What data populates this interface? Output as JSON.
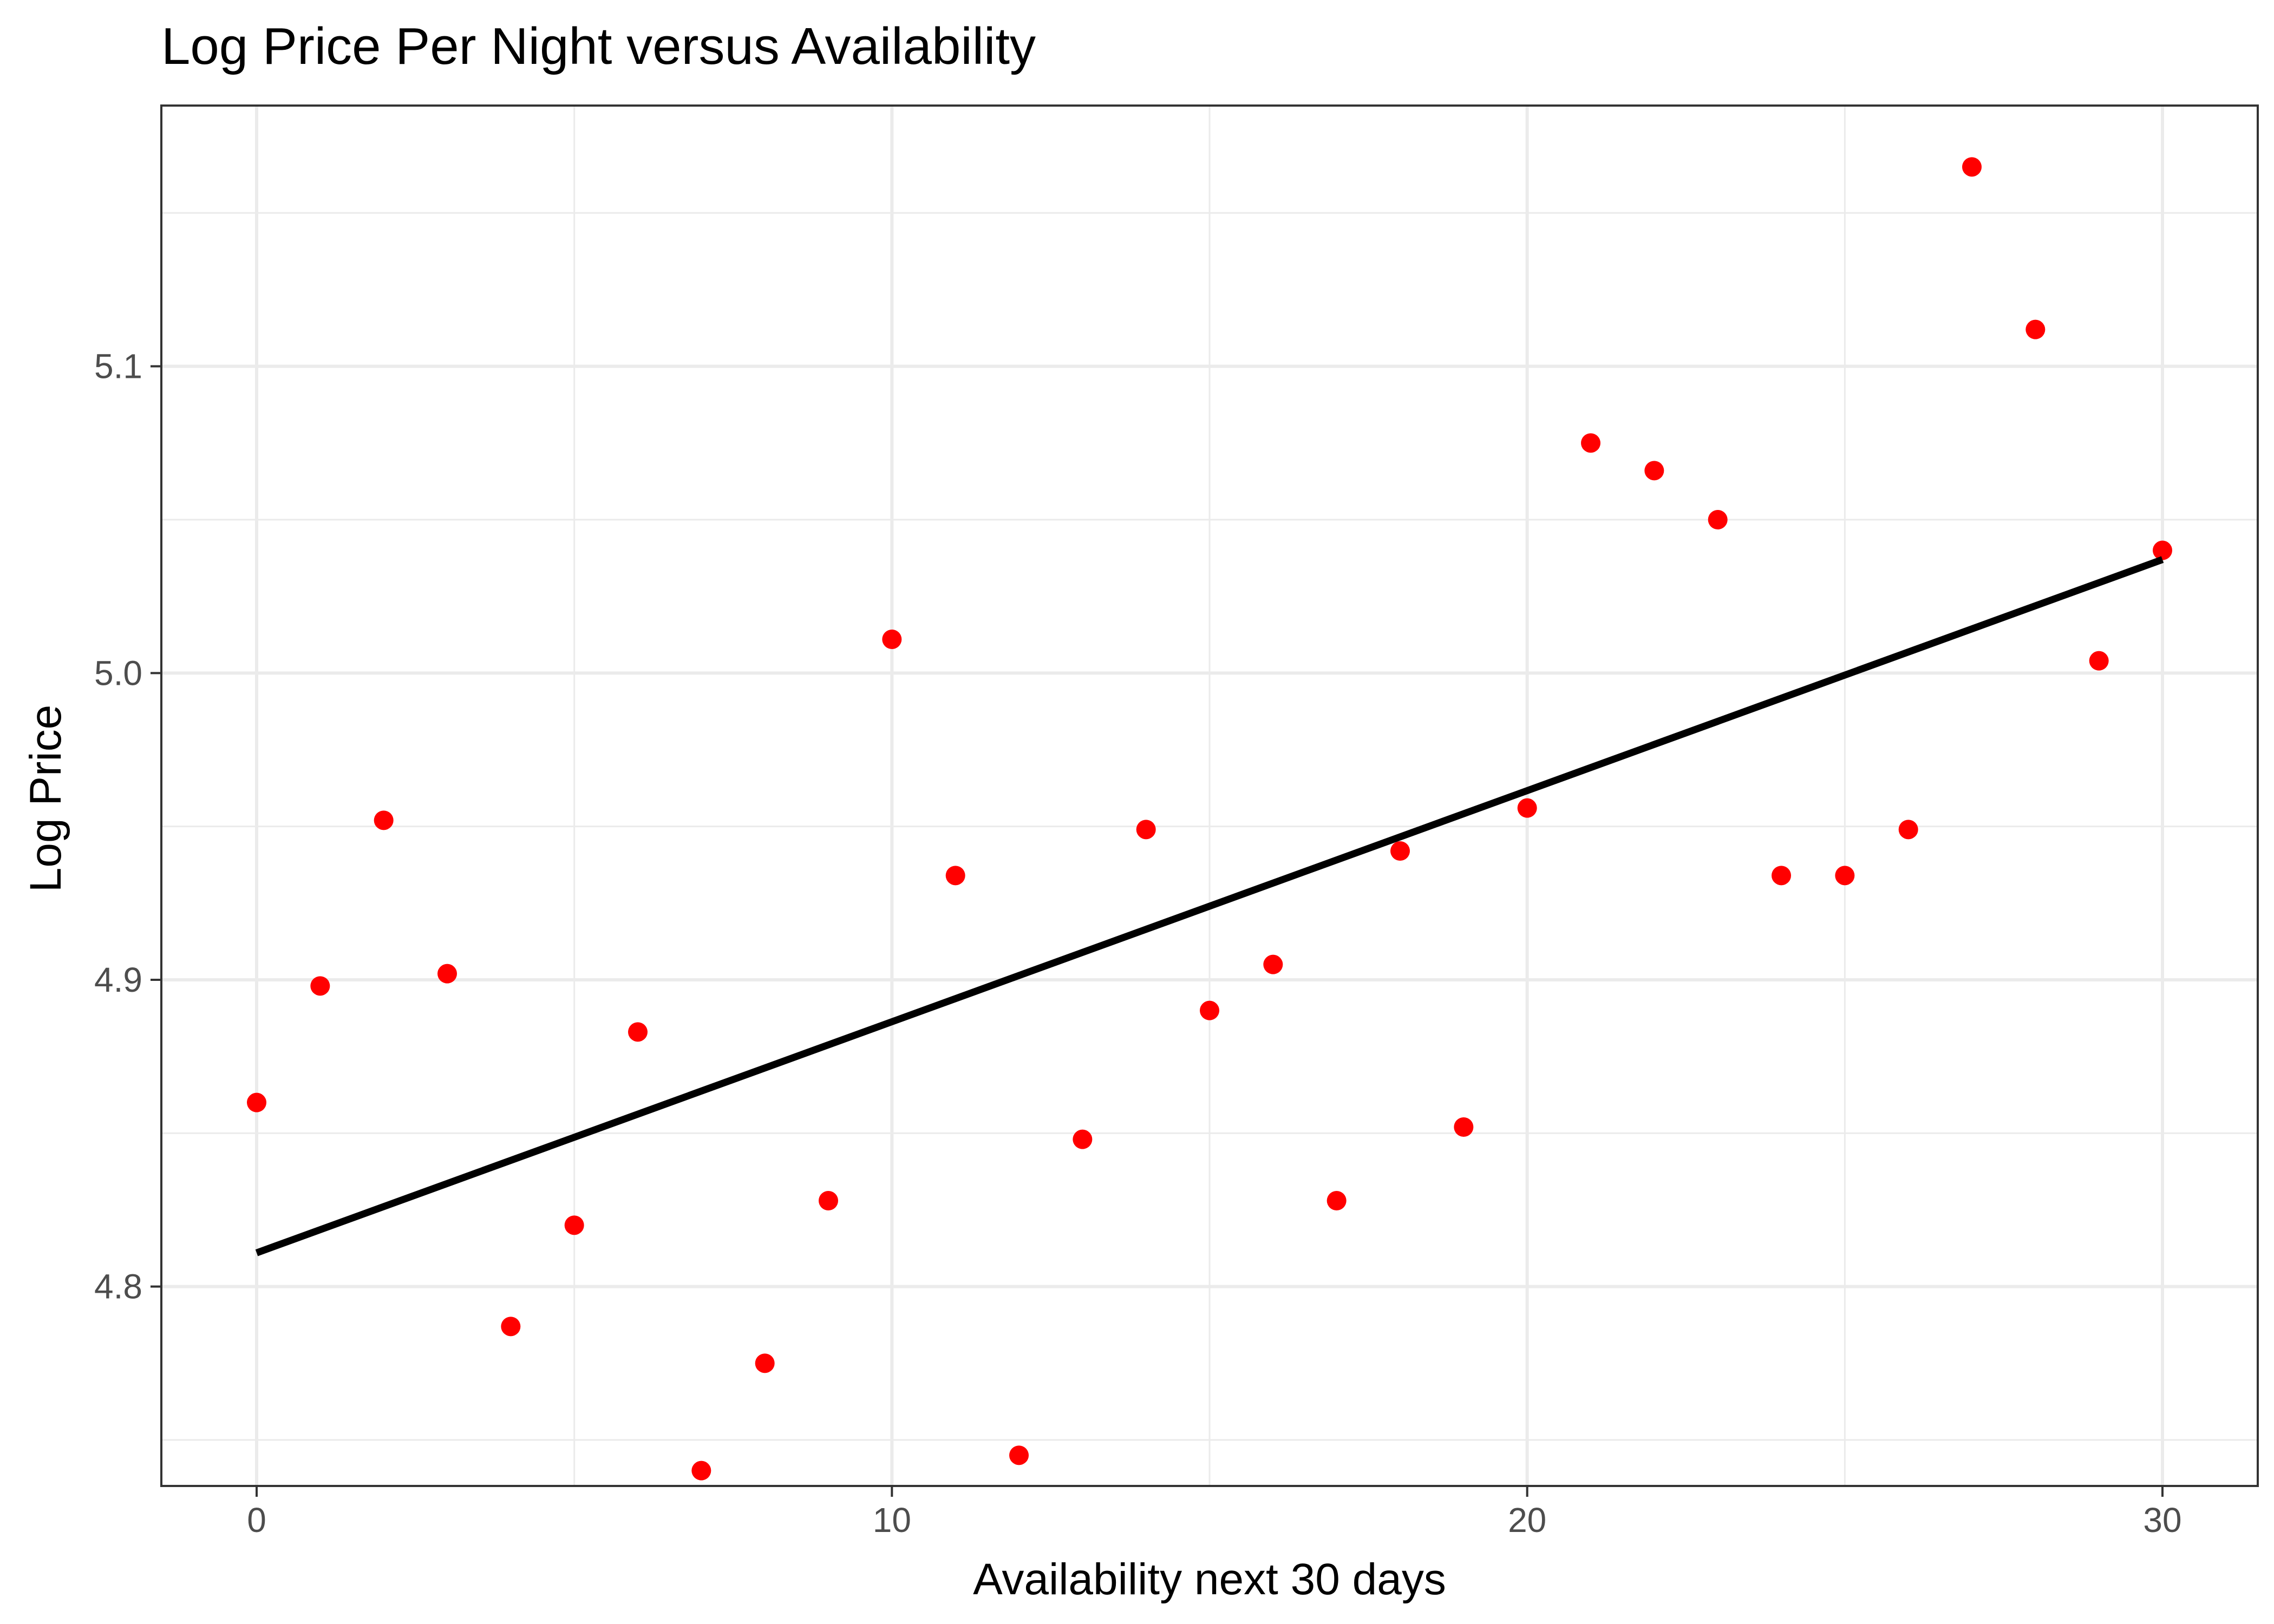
{
  "chart_data": {
    "type": "scatter",
    "title": "Log Price Per Night versus Availability",
    "xlabel": "Availability next 30 days",
    "ylabel": "Log Price",
    "xlim": [
      -1.5,
      31.5
    ],
    "ylim": [
      4.735,
      5.185
    ],
    "x_ticks": [
      0,
      10,
      20,
      30
    ],
    "x_tick_labels": [
      "0",
      "10",
      "20",
      "30"
    ],
    "y_ticks": [
      4.8,
      4.9,
      5.0,
      5.1
    ],
    "y_tick_labels": [
      "4.8",
      "4.9",
      "5.0",
      "5.1"
    ],
    "x_minor_ticks": [
      5,
      15,
      25
    ],
    "y_minor_ticks": [
      4.75,
      4.85,
      4.95,
      5.05,
      5.15
    ],
    "grid": true,
    "point_color": "#ff0000",
    "line_color": "#000000",
    "points": {
      "x": [
        0,
        1,
        2,
        3,
        4,
        5,
        6,
        7,
        8,
        9,
        10,
        11,
        12,
        13,
        14,
        15,
        16,
        17,
        18,
        19,
        20,
        21,
        22,
        23,
        24,
        25,
        26,
        27,
        28,
        29,
        30
      ],
      "y": [
        4.86,
        4.898,
        4.952,
        4.902,
        4.787,
        4.82,
        4.883,
        4.74,
        4.775,
        4.828,
        5.011,
        4.934,
        4.745,
        4.848,
        4.949,
        4.89,
        4.905,
        4.828,
        4.942,
        4.852,
        4.956,
        5.075,
        5.066,
        5.05,
        4.934,
        4.934,
        4.949,
        5.165,
        5.112,
        5.004,
        5.04
      ]
    },
    "fit_line": {
      "x": [
        0,
        30
      ],
      "y": [
        4.811,
        5.037
      ]
    }
  }
}
